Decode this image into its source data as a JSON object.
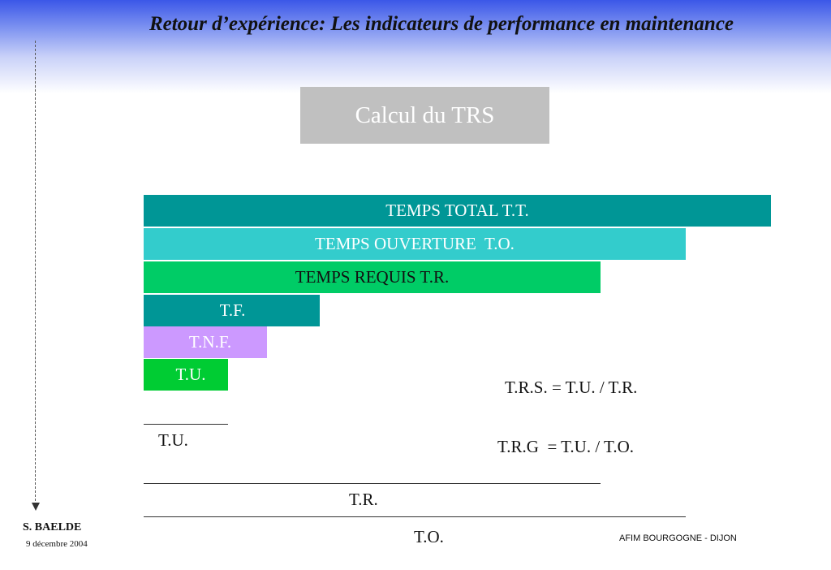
{
  "header": {
    "title": "Retour d’expérience: Les indicateurs de performance en maintenance"
  },
  "subtitle": "Calcul du TRS",
  "bars": {
    "tt": "TEMPS TOTAL T.T.",
    "to": "TEMPS OUVERTURE  T.O.",
    "tr": "TEMPS REQUIS T.R.",
    "tf": "T.F.",
    "tnf": "T.N.F.",
    "tu": "T.U."
  },
  "formulas": {
    "trs": "T.R.S. = T.U. / T.R.",
    "trg": "T.R.G  = T.U. / T.O."
  },
  "fraction_labels": {
    "tu": "T.U.",
    "tr": "T.R.",
    "to": "T.O."
  },
  "footer": {
    "author": "S. BAELDE",
    "date": "9 décembre 2004",
    "org": "AFIM BOURGOGNE - DIJON"
  },
  "colors": {
    "tt": "#009696",
    "to": "#33cccc",
    "tr": "#00cc66",
    "tf": "#009696",
    "tnf": "#cc99ff",
    "tu": "#00cc33",
    "subtitle_box": "#c0c0c0"
  }
}
